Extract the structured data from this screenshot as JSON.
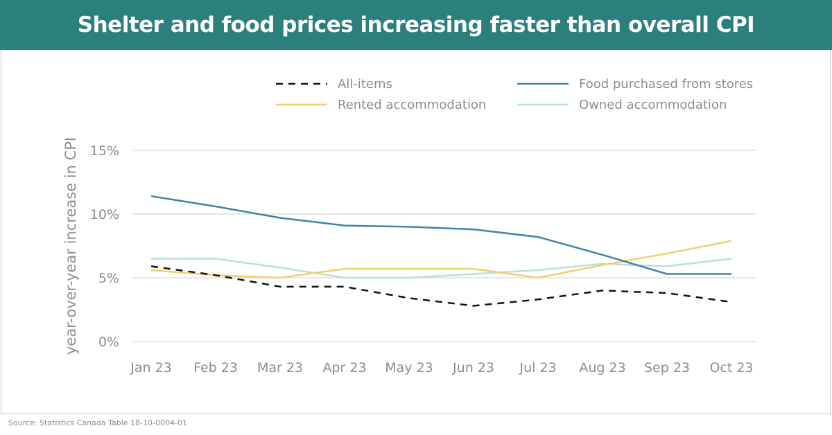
{
  "header": {
    "title": "Shelter and food prices increasing faster than overall CPI"
  },
  "footer": {
    "source": "Source: Statistics Canada Table 18-10-0004-01"
  },
  "colors": {
    "header_bg": "#2b7f7c",
    "all_items": "#111111",
    "food": "#3f84a8",
    "rented": "#f5cd6e",
    "owned": "#b8e0d8",
    "grid": "#cccccc",
    "text": "#8d8d8d"
  },
  "chart_data": {
    "type": "line",
    "title": "Shelter and food prices increasing faster than overall CPI",
    "xlabel": "",
    "ylabel": "year-over-year increase in CPI",
    "categories": [
      "Jan 23",
      "Feb 23",
      "Mar 23",
      "Apr 23",
      "May 23",
      "Jun 23",
      "Jul 23",
      "Aug 23",
      "Sep 23",
      "Oct 23"
    ],
    "ylim": [
      0,
      15
    ],
    "yticks": [
      0,
      5,
      10,
      15
    ],
    "ytick_labels": [
      "0%",
      "5%",
      "10%",
      "15%"
    ],
    "grid": true,
    "legend_position": "top-right",
    "series": [
      {
        "name": "All-items",
        "key": "all_items",
        "style": "dashed",
        "values": [
          5.9,
          5.2,
          4.3,
          4.3,
          3.4,
          2.8,
          3.3,
          4.0,
          3.8,
          3.1
        ]
      },
      {
        "name": "Food purchased from stores",
        "key": "food",
        "style": "solid",
        "values": [
          11.4,
          10.6,
          9.7,
          9.1,
          9.0,
          8.8,
          8.2,
          6.8,
          5.3,
          5.3
        ]
      },
      {
        "name": "Rented accommodation",
        "key": "rented",
        "style": "solid",
        "values": [
          5.6,
          5.2,
          5.0,
          5.7,
          5.7,
          5.7,
          5.0,
          6.0,
          6.9,
          7.9
        ]
      },
      {
        "name": "Owned accommodation",
        "key": "owned",
        "style": "solid",
        "values": [
          6.5,
          6.5,
          5.8,
          5.0,
          5.0,
          5.3,
          5.6,
          6.1,
          5.9,
          6.5
        ]
      }
    ]
  }
}
